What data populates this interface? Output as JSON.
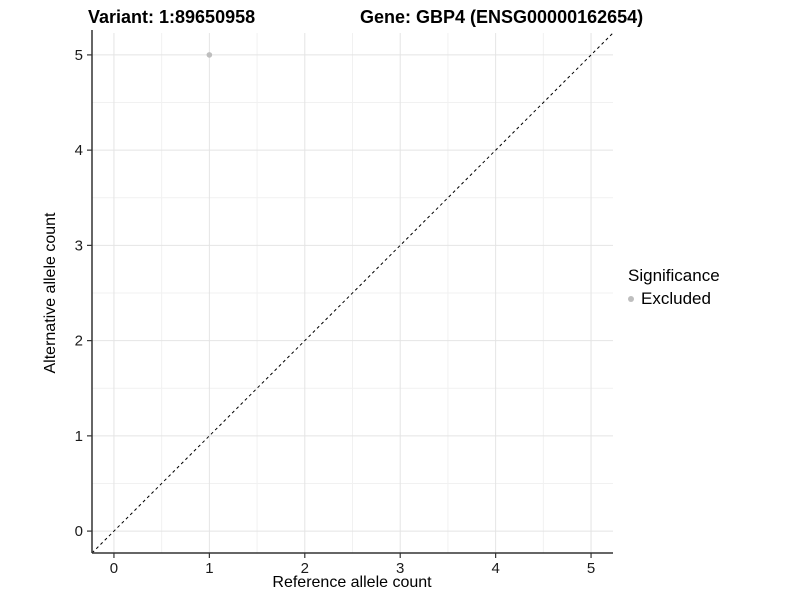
{
  "figure": {
    "title_left": "Variant: 1:89650958",
    "title_right": "Gene: GBP4 (ENSG00000162654)"
  },
  "axes": {
    "x_label": "Reference allele count",
    "y_label": "Alternative allele count"
  },
  "legend": {
    "title": "Significance",
    "items": [
      {
        "label": "Excluded",
        "color": "#bebebe"
      }
    ]
  },
  "colors": {
    "background": "#ffffff",
    "grid_major": "#e4e4e4",
    "grid_minor": "#f1f1f1",
    "axis_line": "#333333",
    "tick_mark": "#333333",
    "tick_text": "#1a1a1a",
    "point": "#bebebe",
    "reference_line": "#000000"
  },
  "chart_data": {
    "type": "scatter",
    "title": "Variant: 1:89650958 | Gene: GBP4 (ENSG00000162654)",
    "xlabel": "Reference allele count",
    "ylabel": "Alternative allele count",
    "xlim": [
      -0.23,
      5.23
    ],
    "ylim": [
      -0.23,
      5.23
    ],
    "x_ticks": [
      0,
      1,
      2,
      3,
      4,
      5
    ],
    "y_ticks": [
      0,
      1,
      2,
      3,
      4,
      5
    ],
    "x_minor_ticks": [
      0.5,
      1.5,
      2.5,
      3.5,
      4.5
    ],
    "y_minor_ticks": [
      0.5,
      1.5,
      2.5,
      3.5,
      4.5
    ],
    "grid": true,
    "legend_position": "right",
    "series": [
      {
        "name": "Excluded",
        "color": "#bebebe",
        "points": [
          {
            "x": 1,
            "y": 5
          }
        ]
      }
    ],
    "reference_line": {
      "type": "identity",
      "slope": 1,
      "intercept": 0,
      "style": "dashed",
      "color": "#000000"
    }
  }
}
